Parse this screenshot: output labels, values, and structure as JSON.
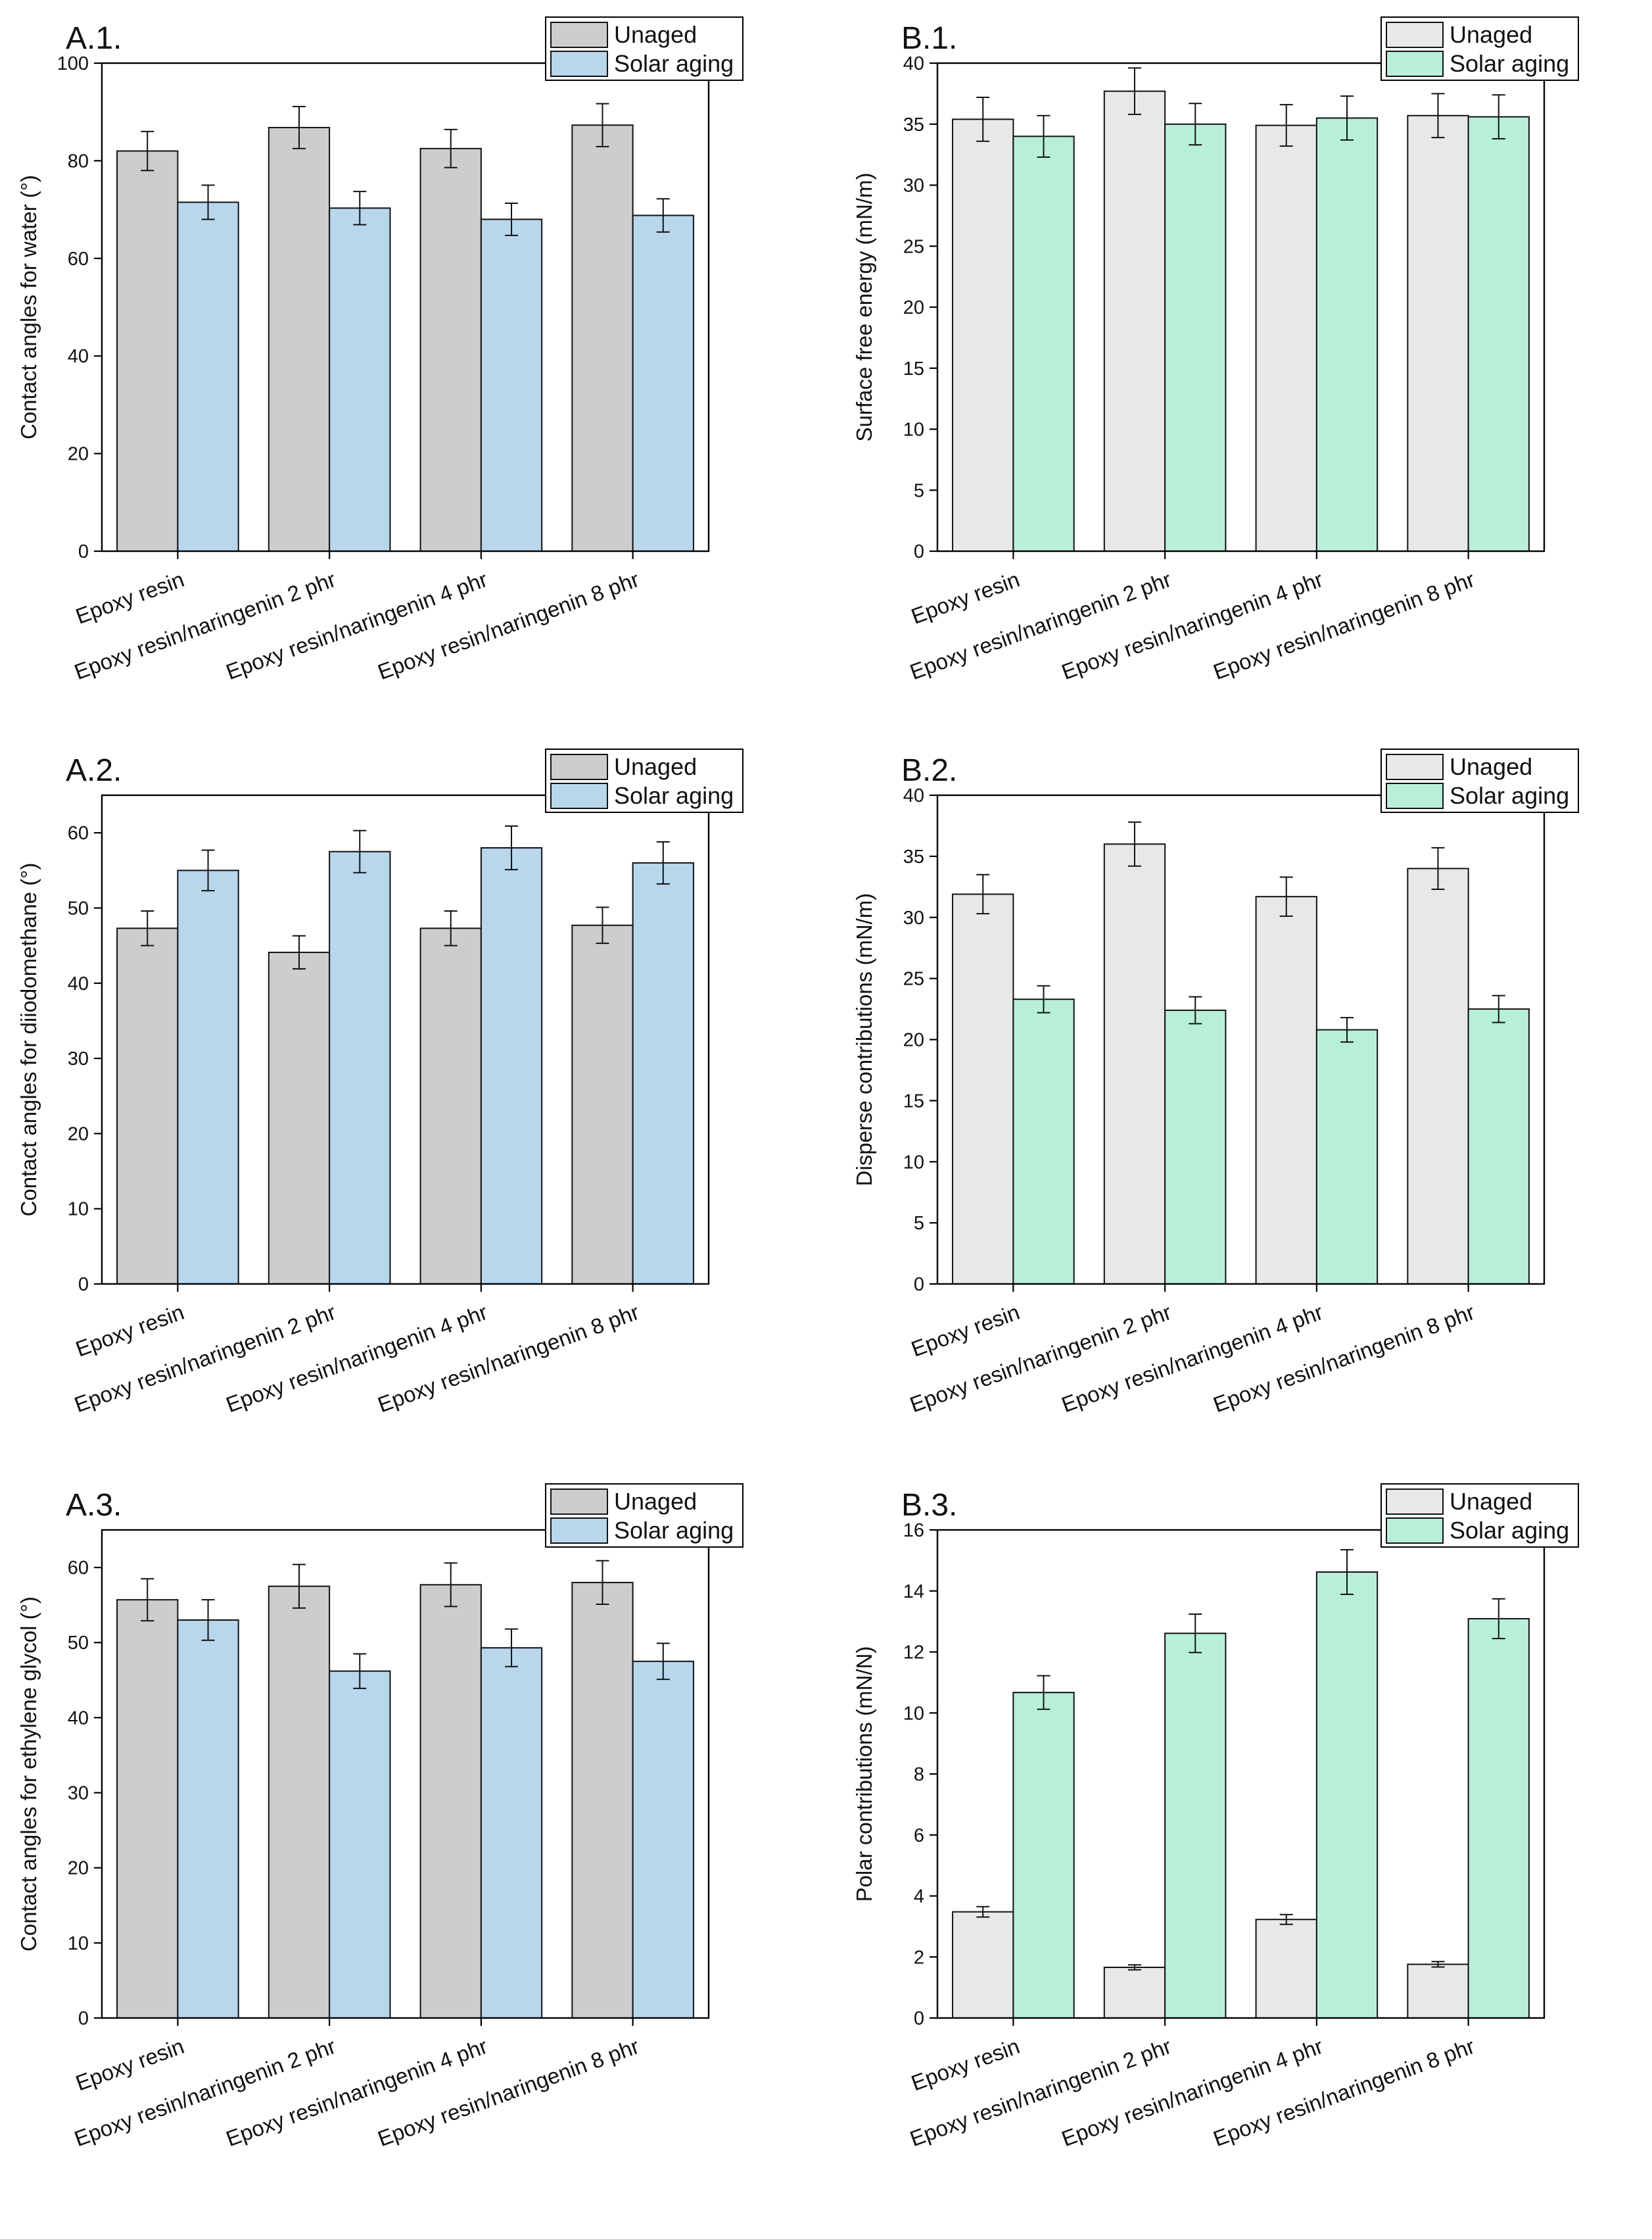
{
  "figure": {
    "categories": [
      "Epoxy resin",
      "Epoxy resin/naringenin 2 phr",
      "Epoxy resin/naringenin 4 phr",
      "Epoxy resin/naringenin 8 phr"
    ],
    "series_names": [
      "Unaged",
      "Solar aging"
    ]
  },
  "chart_data": [
    {
      "id": "A1",
      "panel": "A.1.",
      "type": "bar",
      "categories": [
        "Epoxy resin",
        "Epoxy resin/naringenin 2 phr",
        "Epoxy resin/naringenin 4 phr",
        "Epoxy resin/naringenin 8 phr"
      ],
      "ylabel": "Contact angles for water (°)",
      "ylim": [
        0,
        100
      ],
      "yticks": [
        0,
        20,
        40,
        60,
        80,
        100
      ],
      "legend": [
        "Unaged",
        "Solar aging"
      ],
      "colors": [
        "#cdcdcd",
        "#b8d6ec"
      ],
      "series": [
        {
          "name": "Unaged",
          "values": [
            82.0,
            86.8,
            82.5,
            87.3
          ],
          "errors": [
            4.0,
            4.3,
            3.9,
            4.4
          ]
        },
        {
          "name": "Solar aging",
          "values": [
            71.5,
            70.3,
            68.0,
            68.8
          ],
          "errors": [
            3.5,
            3.4,
            3.3,
            3.4
          ]
        }
      ]
    },
    {
      "id": "B1",
      "panel": "B.1.",
      "type": "bar",
      "categories": [
        "Epoxy resin",
        "Epoxy resin/naringenin 2 phr",
        "Epoxy resin/naringenin 4 phr",
        "Epoxy resin/naringenin 8 phr"
      ],
      "ylabel": "Surface free energy (mN/m)",
      "ylim": [
        0,
        40
      ],
      "yticks": [
        0,
        5,
        10,
        15,
        20,
        25,
        30,
        35,
        40
      ],
      "legend": [
        "Unaged",
        "Solar aging"
      ],
      "colors": [
        "#e8e8e8",
        "#b8efd8"
      ],
      "series": [
        {
          "name": "Unaged",
          "values": [
            35.4,
            37.7,
            34.9,
            35.7
          ],
          "errors": [
            1.8,
            1.9,
            1.7,
            1.8
          ]
        },
        {
          "name": "Solar aging",
          "values": [
            34.0,
            35.0,
            35.5,
            35.6
          ],
          "errors": [
            1.7,
            1.7,
            1.8,
            1.8
          ]
        }
      ]
    },
    {
      "id": "A2",
      "panel": "A.2.",
      "type": "bar",
      "categories": [
        "Epoxy resin",
        "Epoxy resin/naringenin 2 phr",
        "Epoxy resin/naringenin 4 phr",
        "Epoxy resin/naringenin 8 phr"
      ],
      "ylabel": "Contact angles for diiodomethane (°)",
      "ylim": [
        0,
        65
      ],
      "yticks": [
        0,
        10,
        20,
        30,
        40,
        50,
        60
      ],
      "legend": [
        "Unaged",
        "Solar aging"
      ],
      "colors": [
        "#cdcdcd",
        "#b8d6ec"
      ],
      "series": [
        {
          "name": "Unaged",
          "values": [
            47.3,
            44.1,
            47.3,
            47.7
          ],
          "errors": [
            2.3,
            2.2,
            2.3,
            2.4
          ]
        },
        {
          "name": "Solar aging",
          "values": [
            55.0,
            57.5,
            58.0,
            56.0
          ],
          "errors": [
            2.7,
            2.8,
            2.9,
            2.8
          ]
        }
      ]
    },
    {
      "id": "B2",
      "panel": "B.2.",
      "type": "bar",
      "categories": [
        "Epoxy resin",
        "Epoxy resin/naringenin 2 phr",
        "Epoxy resin/naringenin 4 phr",
        "Epoxy resin/naringenin 8 phr"
      ],
      "ylabel": "Disperse contributions (mN/m)",
      "ylim": [
        0,
        40
      ],
      "yticks": [
        0,
        5,
        10,
        15,
        20,
        25,
        30,
        35,
        40
      ],
      "legend": [
        "Unaged",
        "Solar aging"
      ],
      "colors": [
        "#e8e8e8",
        "#b8efd8"
      ],
      "series": [
        {
          "name": "Unaged",
          "values": [
            31.9,
            36.0,
            31.7,
            34.0
          ],
          "errors": [
            1.6,
            1.8,
            1.6,
            1.7
          ]
        },
        {
          "name": "Solar aging",
          "values": [
            23.3,
            22.4,
            20.8,
            22.5
          ],
          "errors": [
            1.1,
            1.1,
            1.0,
            1.1
          ]
        }
      ]
    },
    {
      "id": "A3",
      "panel": "A.3.",
      "type": "bar",
      "categories": [
        "Epoxy resin",
        "Epoxy resin/naringenin 2 phr",
        "Epoxy resin/naringenin 4 phr",
        "Epoxy resin/naringenin 8 phr"
      ],
      "ylabel": "Contact angles for ethylene glycol  (°)",
      "ylim": [
        0,
        65
      ],
      "yticks": [
        0,
        10,
        20,
        30,
        40,
        50,
        60
      ],
      "legend": [
        "Unaged",
        "Solar aging"
      ],
      "colors": [
        "#cdcdcd",
        "#b8d6ec"
      ],
      "series": [
        {
          "name": "Unaged",
          "values": [
            55.7,
            57.5,
            57.7,
            58.0
          ],
          "errors": [
            2.8,
            2.9,
            2.9,
            2.9
          ]
        },
        {
          "name": "Solar aging",
          "values": [
            53.0,
            46.2,
            49.3,
            47.5
          ],
          "errors": [
            2.7,
            2.3,
            2.5,
            2.4
          ]
        }
      ]
    },
    {
      "id": "B3",
      "panel": "B.3.",
      "type": "bar",
      "categories": [
        "Epoxy resin",
        "Epoxy resin/naringenin 2 phr",
        "Epoxy resin/naringenin 4 phr",
        "Epoxy resin/naringenin 8 phr"
      ],
      "ylabel": "Polar contributions  (mN/N)",
      "ylim": [
        0,
        16
      ],
      "yticks": [
        0,
        2,
        4,
        6,
        8,
        10,
        12,
        14,
        16
      ],
      "legend": [
        "Unaged",
        "Solar aging"
      ],
      "colors": [
        "#e8e8e8",
        "#b8efd8"
      ],
      "series": [
        {
          "name": "Unaged",
          "values": [
            3.48,
            1.66,
            3.23,
            1.76
          ],
          "errors": [
            0.17,
            0.08,
            0.16,
            0.09
          ]
        },
        {
          "name": "Solar aging",
          "values": [
            10.67,
            12.61,
            14.62,
            13.09
          ],
          "errors": [
            0.55,
            0.63,
            0.73,
            0.65
          ]
        }
      ]
    }
  ]
}
